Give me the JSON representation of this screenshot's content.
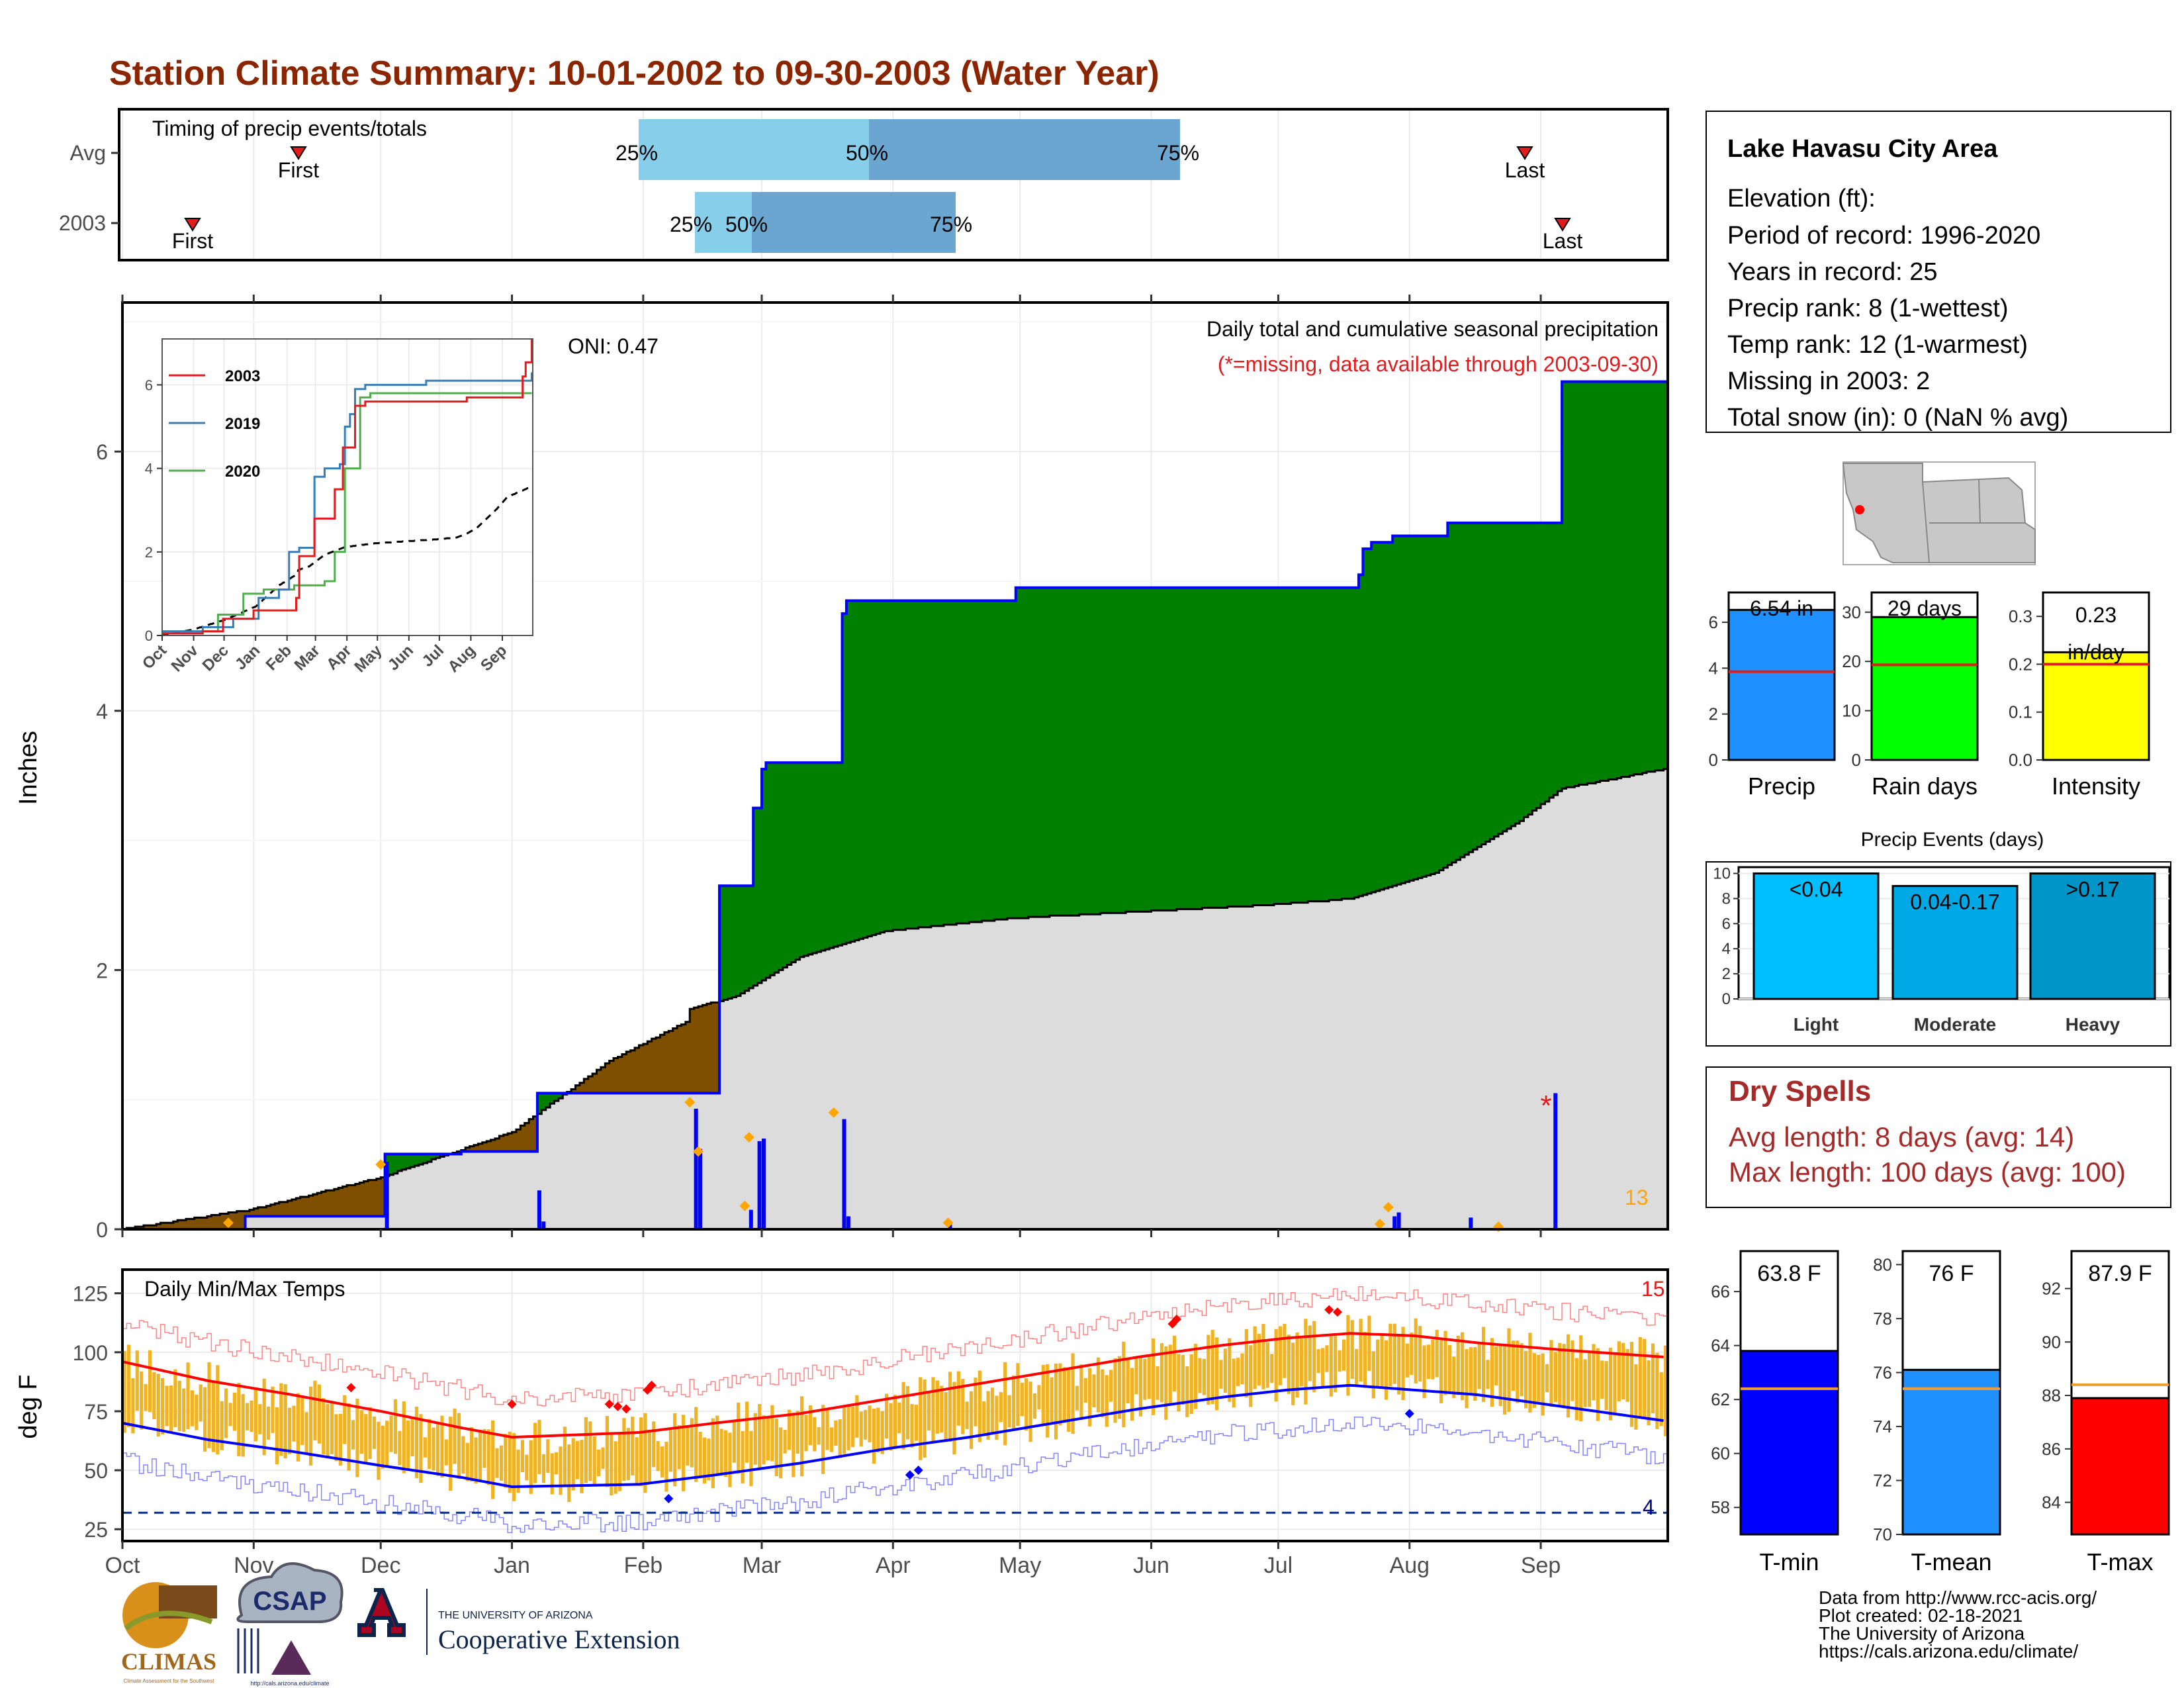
{
  "page_title": "Station Climate Summary: 10-01-2002 to 09-30-2003 (Water Year)",
  "timing": {
    "label": "Timing of precip events/totals",
    "rows": [
      {
        "name": "Avg",
        "first": "First",
        "last": "Last",
        "p25": "25%",
        "p50": "50%",
        "p75": "75%"
      },
      {
        "name": "2003",
        "first": "First",
        "last": "Last",
        "p25": "25%",
        "p50": "50%",
        "p75": "75%"
      }
    ]
  },
  "precip_panel": {
    "title": "Daily total and cumulative seasonal precipitation",
    "subtitle": "(*=missing, data available through 2003-09-30)",
    "oni": "ONI: 0.47",
    "ylabel": "Inches",
    "yticks": [
      "0",
      "2",
      "4",
      "6"
    ],
    "count_label": "13",
    "missing_marker": "*"
  },
  "inset": {
    "yticks": [
      "0",
      "2",
      "4",
      "6"
    ],
    "months": [
      "Oct",
      "Nov",
      "Dec",
      "Jan",
      "Feb",
      "Mar",
      "Apr",
      "May",
      "Jun",
      "Jul",
      "Aug",
      "Sep"
    ],
    "legend": [
      {
        "name": "2003",
        "color": "#e41a1c"
      },
      {
        "name": "2019",
        "color": "#377eb8"
      },
      {
        "name": "2020",
        "color": "#4daf4a"
      }
    ]
  },
  "temp_panel": {
    "title": "Daily Min/Max Temps",
    "ylabel": "deg F",
    "yticks": [
      "25",
      "50",
      "75",
      "100",
      "125"
    ],
    "count_top": "15",
    "count_bottom": "4"
  },
  "months": [
    "Oct",
    "Nov",
    "Dec",
    "Jan",
    "Feb",
    "Mar",
    "Apr",
    "May",
    "Jun",
    "Jul",
    "Aug",
    "Sep"
  ],
  "station": {
    "name": "Lake Havasu City Area",
    "lines": [
      "Elevation (ft):",
      "Period of record: 1996-2020",
      "Years in record: 25",
      "Precip rank: 8 (1-wettest)",
      "Temp rank: 12 (1-warmest)",
      "Missing in 2003: 2",
      "Total snow (in): 0 (NaN % avg)"
    ]
  },
  "small_bars": [
    {
      "label": "Precip",
      "value_text": "6.54 in",
      "value": 6.54,
      "avg": 3.85,
      "ymax": 7.3,
      "yticks": [
        "0",
        "2",
        "4",
        "6"
      ],
      "color": "#1e90ff"
    },
    {
      "label": "Rain days",
      "value_text": "29 days",
      "value": 29,
      "avg": 19.3,
      "ymax": 34,
      "yticks": [
        "0",
        "10",
        "20",
        "30"
      ],
      "color": "#00ff00"
    },
    {
      "label": "Intensity",
      "value_text": "0.23 in/day",
      "value": 0.225,
      "avg": 0.2,
      "ymax": 0.35,
      "yticks": [
        "0.0",
        "0.1",
        "0.2",
        "0.3"
      ],
      "color": "#ffff00"
    }
  ],
  "events": {
    "title": "Precip Events (days)",
    "yticks": [
      "0",
      "2",
      "4",
      "6",
      "8",
      "10"
    ],
    "bars": [
      {
        "label": "Light",
        "text": "<0.04",
        "value": 10,
        "color": "#00bfff"
      },
      {
        "label": "Moderate",
        "text": "0.04-0.17",
        "value": 9,
        "color": "#00a9e6"
      },
      {
        "label": "Heavy",
        "text": ">0.17",
        "value": 10,
        "color": "#0095c8"
      }
    ]
  },
  "dry_spells": {
    "title": "Dry Spells",
    "avg_line": "Avg length: 8 days (avg: 14)",
    "max_line": "Max length: 100 days (avg: 100)"
  },
  "temp_bars": [
    {
      "label": "T-min",
      "value_text": "63.8 F",
      "value": 63.8,
      "avg": 62.4,
      "ymin": 57,
      "ymax": 67.5,
      "yticks": [
        "58",
        "60",
        "62",
        "64",
        "66"
      ],
      "color": "#0000ff"
    },
    {
      "label": "T-mean",
      "value_text": "76 F",
      "value": 76.1,
      "avg": 75.4,
      "ymin": 70,
      "ymax": 80.5,
      "yticks": [
        "70",
        "72",
        "74",
        "76",
        "78",
        "80"
      ],
      "color": "#1e90ff"
    },
    {
      "label": "T-max",
      "value_text": "87.9 F",
      "value": 87.9,
      "avg": 88.4,
      "ymin": 82.8,
      "ymax": 93.4,
      "yticks": [
        "84",
        "86",
        "88",
        "90",
        "92"
      ],
      "color": "#ff0000"
    }
  ],
  "logos": {
    "climas": "CLIMAS",
    "climas_sub": "Climate Assessment for the Southwest",
    "csap": "CSAP",
    "csap_url": "http://cals.arizona.edu/climate",
    "ua_small": "THE UNIVERSITY OF ARIZONA",
    "ua_big": "Cooperative Extension"
  },
  "footer": [
    "Data from http://www.rcc-acis.org/",
    "Plot created: 02-18-2021",
    "The University of Arizona",
    "https://cals.arizona.edu/climate/"
  ],
  "chart_data": [
    {
      "type": "area",
      "title": "Daily total and cumulative seasonal precipitation",
      "ylabel": "Inches",
      "ylim": [
        0,
        7.15
      ],
      "series": [
        {
          "name": "2003 cumulative",
          "points": [
            [
              0,
              0
            ],
            [
              29,
              0.1
            ],
            [
              61,
              0.1
            ],
            [
              62,
              0.58
            ],
            [
              75,
              0.58
            ],
            [
              80,
              0.6
            ],
            [
              92,
              0.6
            ],
            [
              98,
              1.05
            ],
            [
              133,
              1.05
            ],
            [
              135,
              1.05
            ],
            [
              141,
              2.65
            ],
            [
              148,
              2.65
            ],
            [
              149,
              3.25
            ],
            [
              151,
              3.55
            ],
            [
              152,
              3.6
            ],
            [
              157,
              3.6
            ],
            [
              162,
              3.6
            ],
            [
              169,
              3.6
            ],
            [
              170,
              4.75
            ],
            [
              171,
              4.85
            ],
            [
              190,
              4.85
            ],
            [
              210,
              4.85
            ],
            [
              211,
              4.95
            ],
            [
              240,
              4.95
            ],
            [
              290,
              4.95
            ],
            [
              292,
              5.05
            ],
            [
              293,
              5.25
            ],
            [
              295,
              5.3
            ],
            [
              300,
              5.35
            ],
            [
              313,
              5.45
            ],
            [
              326,
              5.45
            ],
            [
              339,
              5.45
            ],
            [
              340,
              6.54
            ],
            [
              364,
              6.54
            ]
          ]
        },
        {
          "name": "Average cumulative",
          "points": [
            [
              0,
              0
            ],
            [
              30,
              0.15
            ],
            [
              61,
              0.4
            ],
            [
              92,
              0.75
            ],
            [
              115,
              1.3
            ],
            [
              133,
              1.6
            ],
            [
              134,
              1.7
            ],
            [
              145,
              1.8
            ],
            [
              160,
              2.1
            ],
            [
              180,
              2.3
            ],
            [
              210,
              2.4
            ],
            [
              240,
              2.45
            ],
            [
              270,
              2.5
            ],
            [
              290,
              2.55
            ],
            [
              300,
              2.65
            ],
            [
              310,
              2.75
            ],
            [
              320,
              2.95
            ],
            [
              330,
              3.15
            ],
            [
              340,
              3.4
            ],
            [
              364,
              3.55
            ]
          ]
        }
      ],
      "daily_bars": [
        [
          62,
          0.52
        ],
        [
          98,
          0.3
        ],
        [
          99,
          0.06
        ],
        [
          135,
          0.93
        ],
        [
          136,
          0.62
        ],
        [
          148,
          0.15
        ],
        [
          150,
          0.68
        ],
        [
          151,
          0.7
        ],
        [
          170,
          0.85
        ],
        [
          171,
          0.1
        ],
        [
          195,
          0.04
        ],
        [
          300,
          0.1
        ],
        [
          301,
          0.13
        ],
        [
          318,
          0.09
        ],
        [
          338,
          1.05
        ]
      ]
    },
    {
      "type": "line",
      "title": "Daily Min/Max Temps",
      "ylabel": "deg F",
      "ylim": [
        20,
        135
      ],
      "series": [
        {
          "name": "Avg max",
          "points": [
            [
              0,
              96
            ],
            [
              20,
              88
            ],
            [
              40,
              82
            ],
            [
              61,
              75
            ],
            [
              80,
              68
            ],
            [
              92,
              64
            ],
            [
              122,
              66
            ],
            [
              140,
              70
            ],
            [
              160,
              74
            ],
            [
              180,
              80
            ],
            [
              200,
              86
            ],
            [
              220,
              92
            ],
            [
              240,
              98
            ],
            [
              260,
              103
            ],
            [
              275,
              106
            ],
            [
              290,
              108
            ],
            [
              305,
              107
            ],
            [
              320,
              104
            ],
            [
              340,
              101
            ],
            [
              364,
              98
            ]
          ]
        },
        {
          "name": "Avg min",
          "points": [
            [
              0,
              70
            ],
            [
              20,
              63
            ],
            [
              40,
              58
            ],
            [
              61,
              52
            ],
            [
              80,
              47
            ],
            [
              92,
              43
            ],
            [
              122,
              44
            ],
            [
              140,
              48
            ],
            [
              160,
              53
            ],
            [
              180,
              59
            ],
            [
              200,
              64
            ],
            [
              220,
              70
            ],
            [
              240,
              76
            ],
            [
              260,
              81
            ],
            [
              275,
              84
            ],
            [
              290,
              86
            ],
            [
              305,
              84
            ],
            [
              320,
              82
            ],
            [
              340,
              77
            ],
            [
              364,
              71
            ]
          ]
        }
      ]
    }
  ]
}
